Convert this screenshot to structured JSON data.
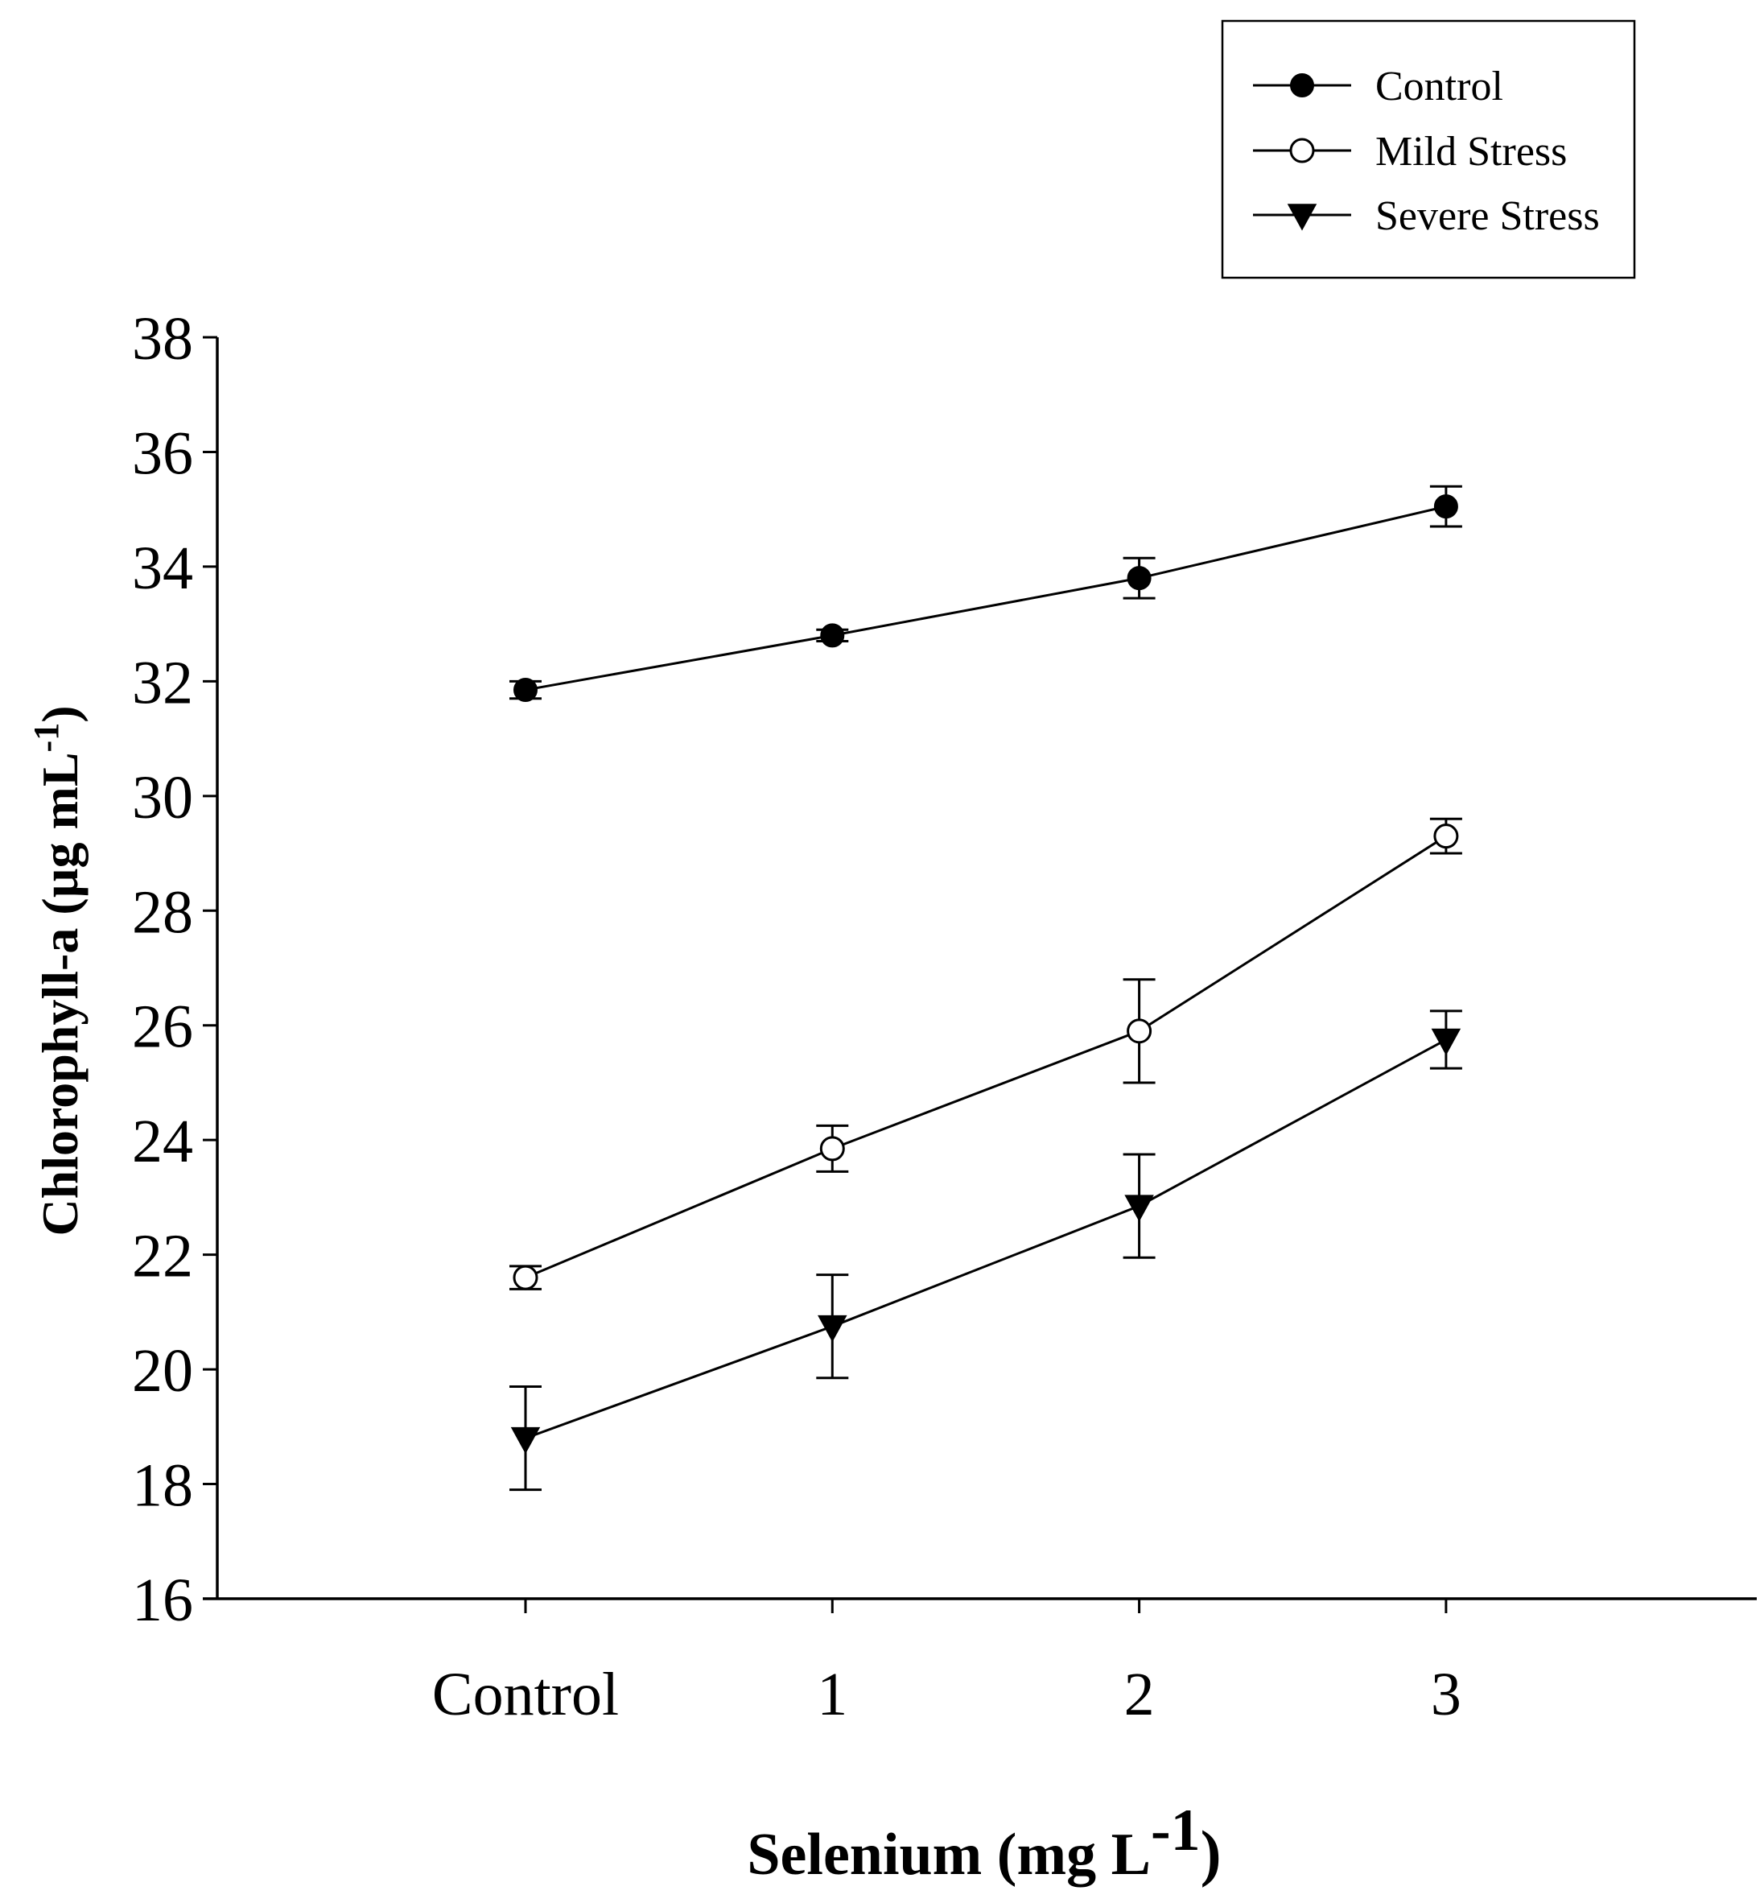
{
  "chart_data": {
    "type": "line",
    "title": "",
    "categories": [
      "Control",
      "1",
      "2",
      "3"
    ],
    "series": [
      {
        "name": "Control",
        "marker": "filled-circle-icon",
        "values": [
          31.85,
          32.8,
          33.8,
          35.05
        ],
        "errors": [
          0.15,
          0.1,
          0.35,
          0.35
        ]
      },
      {
        "name": "Mild Stress",
        "marker": "open-circle-icon",
        "values": [
          21.6,
          23.85,
          25.9,
          29.3
        ],
        "errors": [
          0.2,
          0.4,
          0.9,
          0.3
        ]
      },
      {
        "name": "Severe Stress",
        "marker": "filled-triangle-down-icon",
        "values": [
          18.8,
          20.75,
          22.85,
          25.75
        ],
        "errors": [
          0.9,
          0.9,
          0.9,
          0.5
        ]
      }
    ],
    "xlabel": {
      "text": "Selenium (mg L",
      "sup": "-1",
      "close": ")"
    },
    "ylabel": {
      "text": "Chlorophyll-a (µg mL",
      "sup": "-1",
      "close": ")"
    },
    "ylim": [
      16,
      38
    ],
    "yticks": [
      16,
      18,
      20,
      22,
      24,
      26,
      28,
      30,
      32,
      34,
      36,
      38
    ],
    "grid": false,
    "legend_position": "top-right",
    "colors": {
      "line": "#000000",
      "background": "#ffffff"
    }
  }
}
